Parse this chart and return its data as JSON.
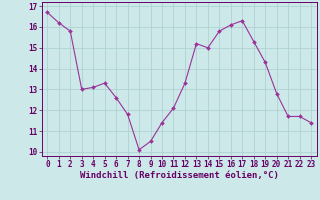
{
  "x": [
    0,
    1,
    2,
    3,
    4,
    5,
    6,
    7,
    8,
    9,
    10,
    11,
    12,
    13,
    14,
    15,
    16,
    17,
    18,
    19,
    20,
    21,
    22,
    23
  ],
  "y": [
    16.7,
    16.2,
    15.8,
    13.0,
    13.1,
    13.3,
    12.6,
    11.8,
    10.1,
    10.5,
    11.4,
    12.1,
    13.3,
    15.2,
    15.0,
    15.8,
    16.1,
    16.3,
    15.3,
    14.3,
    12.8,
    11.7,
    11.7,
    11.4
  ],
  "line_color": "#993399",
  "marker": "D",
  "marker_size": 2.0,
  "bg_color": "#cce8e8",
  "grid_color": "#aacece",
  "xlabel": "Windchill (Refroidissement éolien,°C)",
  "ylim_min": 9.8,
  "ylim_max": 17.2,
  "xlim_min": -0.5,
  "xlim_max": 23.5,
  "yticks": [
    10,
    11,
    12,
    13,
    14,
    15,
    16,
    17
  ],
  "xticks": [
    0,
    1,
    2,
    3,
    4,
    5,
    6,
    7,
    8,
    9,
    10,
    11,
    12,
    13,
    14,
    15,
    16,
    17,
    18,
    19,
    20,
    21,
    22,
    23
  ],
  "label_color": "#660066",
  "tick_color": "#660066",
  "axis_color": "#660066",
  "xlabel_fontsize": 6.5,
  "tick_fontsize": 5.5
}
